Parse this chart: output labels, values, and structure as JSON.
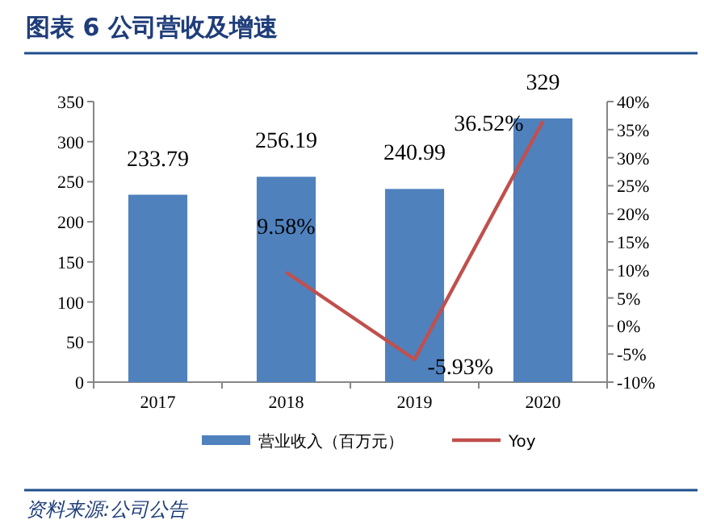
{
  "chart_data": {
    "type": "bar",
    "title": "图表 6  公司营收及增速",
    "categories": [
      "2017",
      "2018",
      "2019",
      "2020"
    ],
    "series": [
      {
        "name": "营业收入（百万元）",
        "color": "#4f81bd",
        "values": [
          233.79,
          256.19,
          240.99,
          329
        ],
        "value_labels": [
          "233.79",
          "256.19",
          "240.99",
          "329"
        ]
      },
      {
        "name": "Yoy",
        "type": "line",
        "axis": "y2",
        "color": "#c0504d",
        "values": [
          null,
          9.58,
          -5.93,
          36.52
        ],
        "value_labels": [
          null,
          "9.58%",
          "-5.93%",
          "36.52%"
        ]
      }
    ],
    "ylim": [
      0,
      350
    ],
    "yticks": [
      0,
      50,
      100,
      150,
      200,
      250,
      300,
      350
    ],
    "y2lim": [
      -10,
      40
    ],
    "y2ticks": [
      {
        "value": -10,
        "label": "-10%"
      },
      {
        "value": -5,
        "label": "-5%"
      },
      {
        "value": 0,
        "label": "0%"
      },
      {
        "value": 5,
        "label": "5%"
      },
      {
        "value": 10,
        "label": "10%"
      },
      {
        "value": 15,
        "label": "15%"
      },
      {
        "value": 20,
        "label": "20%"
      },
      {
        "value": 25,
        "label": "25%"
      },
      {
        "value": 30,
        "label": "30%"
      },
      {
        "value": 35,
        "label": "35%"
      },
      {
        "value": 40,
        "label": "40%"
      }
    ],
    "legend": "bottom",
    "grid": false,
    "marker": "none",
    "line_style": "solid",
    "annotations": [
      "资料来源:公司公告"
    ]
  }
}
